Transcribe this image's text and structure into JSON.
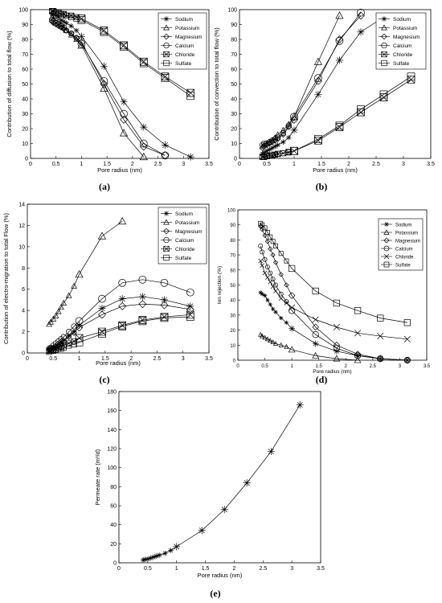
{
  "chart_data": [
    {
      "panel": "(a)",
      "type": "line",
      "xlabel": "Pore radius (nm)",
      "ylabel": "Contribution of diffusion to total flow  (%)",
      "xlim": [
        0,
        3.5
      ],
      "ylim": [
        0,
        100
      ],
      "xticks": [
        "0",
        "0.5",
        "1",
        "1.5",
        "2",
        "2.5",
        "3",
        "3.5"
      ],
      "yticks": [
        "0",
        "10",
        "20",
        "30",
        "40",
        "50",
        "60",
        "70",
        "80",
        "90",
        "100"
      ],
      "legend_position": "top-right",
      "series": [
        {
          "name": "Sodium",
          "marker": "star",
          "x": [
            0.42,
            0.45,
            0.5,
            0.55,
            0.6,
            0.65,
            0.7,
            0.8,
            0.9,
            1.0,
            1.44,
            1.83,
            2.22,
            2.64,
            3.14
          ],
          "y": [
            97,
            97,
            96,
            95,
            93,
            92,
            91,
            89,
            86,
            82,
            62,
            38,
            21,
            9,
            1
          ]
        },
        {
          "name": "Potassium",
          "marker": "triangle",
          "x": [
            0.42,
            0.45,
            0.5,
            0.55,
            0.6,
            0.65,
            0.7,
            0.8,
            0.9,
            1.0,
            1.44,
            1.83,
            2.22
          ],
          "y": [
            95,
            94,
            93,
            92,
            90,
            88,
            86,
            83,
            80,
            76,
            47,
            17,
            1
          ]
        },
        {
          "name": "Magnesium",
          "marker": "diamond",
          "x": [
            0.42,
            0.45,
            0.5,
            0.55,
            0.6,
            0.65,
            0.7,
            0.8,
            0.9,
            1.0,
            1.44,
            1.83,
            2.22,
            2.64
          ],
          "y": [
            92,
            91,
            90,
            89,
            88,
            87,
            86,
            84,
            81,
            78,
            50,
            26,
            8,
            2
          ]
        },
        {
          "name": "Calcium",
          "marker": "circle",
          "x": [
            0.42,
            0.45,
            0.5,
            0.55,
            0.6,
            0.65,
            0.7,
            0.8,
            0.9,
            1.0,
            1.44,
            1.83,
            2.22,
            2.64
          ],
          "y": [
            93,
            92,
            91,
            90,
            89,
            88,
            86,
            84,
            81,
            77,
            52,
            30,
            10,
            2
          ]
        },
        {
          "name": "Chloride",
          "marker": "cross-square",
          "x": [
            0.42,
            0.45,
            0.5,
            0.55,
            0.6,
            0.65,
            0.7,
            0.8,
            0.9,
            1.0,
            1.44,
            1.83,
            2.22,
            2.64,
            3.14
          ],
          "y": [
            99,
            99,
            98,
            98,
            97,
            97,
            96,
            96,
            95,
            94,
            86,
            76,
            65,
            55,
            44
          ]
        },
        {
          "name": "Sulfate",
          "marker": "square",
          "x": [
            0.42,
            0.45,
            0.5,
            0.55,
            0.6,
            0.65,
            0.7,
            0.8,
            0.9,
            1.0,
            1.44,
            1.83,
            2.22,
            2.64,
            3.14
          ],
          "y": [
            99,
            99,
            98,
            98,
            97,
            97,
            96,
            95,
            94,
            93,
            85,
            75,
            64,
            54,
            42
          ]
        }
      ]
    },
    {
      "panel": "(b)",
      "type": "line",
      "xlabel": "Pore radius (nm)",
      "ylabel": "Contribution of convection to total flow  (%)",
      "xlim": [
        0,
        3.5
      ],
      "ylim": [
        0,
        100
      ],
      "xticks": [
        "0",
        "0.5",
        "1",
        "1.5",
        "2",
        "2.5",
        "3",
        "3.5"
      ],
      "yticks": [
        "0",
        "10",
        "20",
        "30",
        "40",
        "50",
        "60",
        "70",
        "80",
        "90",
        "100"
      ],
      "legend_position": "top-right",
      "series": [
        {
          "name": "Sodium",
          "marker": "star",
          "x": [
            0.42,
            0.45,
            0.5,
            0.55,
            0.6,
            0.65,
            0.7,
            0.8,
            0.9,
            1.0,
            1.44,
            1.83,
            2.22,
            2.64
          ],
          "y": [
            3,
            4,
            5,
            6,
            7,
            8,
            9,
            11,
            14,
            19,
            43,
            66,
            85,
            95
          ]
        },
        {
          "name": "Potassium",
          "marker": "triangle",
          "x": [
            0.42,
            0.45,
            0.5,
            0.55,
            0.6,
            0.65,
            0.7,
            0.8,
            0.9,
            1.0,
            1.44,
            1.83
          ],
          "y": [
            8,
            9,
            10,
            11,
            12,
            14,
            16,
            19,
            23,
            28,
            65,
            96
          ]
        },
        {
          "name": "Magnesium",
          "marker": "diamond",
          "x": [
            0.42,
            0.45,
            0.5,
            0.55,
            0.6,
            0.65,
            0.7,
            0.8,
            0.9,
            1.0,
            1.44,
            1.83,
            2.22
          ],
          "y": [
            7,
            8,
            9,
            10,
            11,
            12,
            13,
            16,
            21,
            26,
            52,
            80,
            96
          ]
        },
        {
          "name": "Calcium",
          "marker": "circle",
          "x": [
            0.42,
            0.45,
            0.5,
            0.55,
            0.6,
            0.65,
            0.7,
            0.8,
            0.9,
            1.0,
            1.44,
            1.83,
            2.22
          ],
          "y": [
            9,
            10,
            10,
            11,
            12,
            13,
            14,
            17,
            22,
            28,
            54,
            79,
            98
          ]
        },
        {
          "name": "Chloride",
          "marker": "cross-square",
          "x": [
            0.42,
            0.45,
            0.5,
            0.55,
            0.6,
            0.65,
            0.7,
            0.8,
            0.9,
            1.0,
            1.44,
            1.83,
            2.22,
            2.64,
            3.14
          ],
          "y": [
            1,
            1,
            1.5,
            2,
            2,
            2.5,
            3,
            3.5,
            4,
            5,
            12,
            21,
            31,
            41,
            53
          ]
        },
        {
          "name": "Sulfate",
          "marker": "square",
          "x": [
            0.42,
            0.45,
            0.5,
            0.55,
            0.6,
            0.65,
            0.7,
            0.8,
            0.9,
            1.0,
            1.44,
            1.83,
            2.22,
            2.64,
            3.14
          ],
          "y": [
            1,
            1,
            1.5,
            2,
            2,
            2.5,
            3,
            3.5,
            4.5,
            5,
            13,
            22,
            33,
            43,
            55
          ]
        }
      ]
    },
    {
      "panel": "(c)",
      "type": "line",
      "xlabel": "Pore radius (nm)",
      "ylabel": "Contribution of electro-migration to total Flow (%)",
      "xlim": [
        0,
        3.5
      ],
      "ylim": [
        0,
        14
      ],
      "xticks": [
        "0",
        "0.5",
        "1",
        "1.5",
        "2",
        "2.5",
        "3",
        "3.5"
      ],
      "yticks": [
        "0",
        "2",
        "4",
        "6",
        "8",
        "10",
        "12",
        "14"
      ],
      "legend_position": "top-right",
      "series": [
        {
          "name": "Sodium",
          "marker": "star",
          "x": [
            0.42,
            0.45,
            0.5,
            0.55,
            0.6,
            0.65,
            0.7,
            0.8,
            0.9,
            1.0,
            1.44,
            1.83,
            2.22,
            2.64,
            3.14
          ],
          "y": [
            0.3,
            0.4,
            0.5,
            0.6,
            0.8,
            1.0,
            1.2,
            1.6,
            2.0,
            2.6,
            4.2,
            5.1,
            5.3,
            5.0,
            4.4
          ]
        },
        {
          "name": "Potassium",
          "marker": "triangle",
          "x": [
            0.42,
            0.45,
            0.5,
            0.55,
            0.6,
            0.65,
            0.7,
            0.8,
            0.9,
            1.0,
            1.44,
            1.83
          ],
          "y": [
            2.7,
            2.9,
            3.2,
            3.5,
            3.9,
            4.3,
            4.7,
            5.4,
            6.3,
            7.4,
            11.0,
            12.4
          ]
        },
        {
          "name": "Magnesium",
          "marker": "diamond",
          "x": [
            0.42,
            0.45,
            0.5,
            0.55,
            0.6,
            0.65,
            0.7,
            0.8,
            0.9,
            1.0,
            1.44,
            1.83,
            2.22,
            2.64,
            3.14
          ],
          "y": [
            0.3,
            0.4,
            0.5,
            0.6,
            0.7,
            0.9,
            1.1,
            1.5,
            1.9,
            2.4,
            3.6,
            4.4,
            4.6,
            4.5,
            4.1
          ]
        },
        {
          "name": "Calcium",
          "marker": "circle",
          "x": [
            0.42,
            0.45,
            0.5,
            0.55,
            0.6,
            0.65,
            0.7,
            0.8,
            0.9,
            1.0,
            1.44,
            1.83,
            2.22,
            2.64,
            3.14
          ],
          "y": [
            0.4,
            0.5,
            0.7,
            0.9,
            1.1,
            1.3,
            1.5,
            2.0,
            2.5,
            3.0,
            5.1,
            6.6,
            6.9,
            6.6,
            5.7
          ]
        },
        {
          "name": "Chloride",
          "marker": "cross-square",
          "x": [
            0.42,
            0.45,
            0.5,
            0.55,
            0.6,
            0.65,
            0.7,
            0.8,
            0.9,
            1.0,
            1.44,
            1.83,
            2.22,
            2.64,
            3.14
          ],
          "y": [
            0.2,
            0.3,
            0.3,
            0.4,
            0.5,
            0.6,
            0.7,
            0.9,
            1.1,
            1.4,
            2.0,
            2.6,
            3.1,
            3.4,
            3.6
          ]
        },
        {
          "name": "Sulfate",
          "marker": "square",
          "x": [
            0.42,
            0.45,
            0.5,
            0.55,
            0.6,
            0.65,
            0.7,
            0.8,
            0.9,
            1.0,
            1.44,
            1.83,
            2.22,
            2.64,
            3.14
          ],
          "y": [
            0.1,
            0.2,
            0.2,
            0.3,
            0.4,
            0.4,
            0.5,
            0.7,
            0.8,
            1.0,
            1.8,
            2.5,
            3.0,
            3.3,
            3.4
          ]
        }
      ]
    },
    {
      "panel": "(d)",
      "type": "line",
      "xlabel": "Pore radius (nm)",
      "ylabel": "Ion rejection (%)",
      "xlim": [
        0,
        3.5
      ],
      "ylim": [
        0,
        100
      ],
      "xticks": [
        "0",
        "0.5",
        "1",
        "1.5",
        "2",
        "2.5",
        "3",
        "3.5"
      ],
      "yticks": [
        "0",
        "10",
        "20",
        "30",
        "40",
        "50",
        "60",
        "70",
        "80",
        "90",
        "100"
      ],
      "legend_position": "top-right",
      "series": [
        {
          "name": "Sodium",
          "marker": "star",
          "x": [
            0.42,
            0.45,
            0.5,
            0.55,
            0.6,
            0.65,
            0.7,
            0.8,
            0.9,
            1.0,
            1.44,
            1.83,
            2.22,
            2.64,
            3.14
          ],
          "y": [
            45,
            44,
            43,
            40,
            37,
            34,
            32,
            28,
            25,
            21,
            11,
            6,
            3,
            1,
            0
          ]
        },
        {
          "name": "Potassium",
          "marker": "triangle",
          "x": [
            0.42,
            0.45,
            0.5,
            0.55,
            0.6,
            0.65,
            0.7,
            0.8,
            0.9,
            1.0,
            1.44,
            1.83,
            2.22
          ],
          "y": [
            17,
            16,
            15,
            14,
            13,
            12,
            11,
            10,
            9,
            7,
            3,
            1,
            0
          ]
        },
        {
          "name": "Magnesium",
          "marker": "diamond",
          "x": [
            0.42,
            0.45,
            0.5,
            0.55,
            0.6,
            0.65,
            0.7,
            0.8,
            0.9,
            1.0,
            1.44,
            1.83,
            2.22,
            2.64,
            3.14
          ],
          "y": [
            89,
            87,
            83,
            79,
            74,
            70,
            65,
            57,
            50,
            43,
            22,
            10,
            4,
            1,
            0
          ]
        },
        {
          "name": "Calcium",
          "marker": "circle",
          "x": [
            0.42,
            0.45,
            0.5,
            0.55,
            0.6,
            0.65,
            0.7,
            0.8,
            0.9,
            1.0,
            1.44,
            1.83,
            2.22,
            2.64,
            3.14
          ],
          "y": [
            76,
            72,
            67,
            62,
            58,
            54,
            50,
            44,
            39,
            33,
            17,
            8,
            3,
            1,
            0
          ]
        },
        {
          "name": "Chloride",
          "marker": "x",
          "x": [
            0.42,
            0.45,
            0.5,
            0.55,
            0.6,
            0.65,
            0.7,
            0.8,
            0.9,
            1.0,
            1.44,
            1.83,
            2.22,
            2.64,
            3.14
          ],
          "y": [
            66,
            63,
            58,
            55,
            52,
            49,
            46,
            41,
            38,
            35,
            27,
            22,
            18,
            16,
            14
          ]
        },
        {
          "name": "Sulfate",
          "marker": "square",
          "x": [
            0.42,
            0.45,
            0.5,
            0.55,
            0.6,
            0.65,
            0.7,
            0.8,
            0.9,
            1.0,
            1.44,
            1.83,
            2.22,
            2.64,
            3.14
          ],
          "y": [
            91,
            90,
            88,
            85,
            82,
            79,
            76,
            71,
            66,
            61,
            46,
            38,
            33,
            28,
            25
          ]
        }
      ]
    },
    {
      "panel": "(e)",
      "type": "line",
      "xlabel": "Pore radius (nm)",
      "ylabel": "Permeate rate  (m³/d)",
      "xlim": [
        0,
        3.5
      ],
      "ylim": [
        0,
        180
      ],
      "xticks": [
        "0",
        "0.5",
        "1",
        "1.5",
        "2",
        "2.5",
        "3",
        "3.5"
      ],
      "yticks": [
        "0",
        "20",
        "40",
        "60",
        "80",
        "100",
        "120",
        "140",
        "160",
        "180"
      ],
      "series": [
        {
          "name": "",
          "marker": "star",
          "x": [
            0.42,
            0.45,
            0.5,
            0.55,
            0.6,
            0.65,
            0.7,
            0.8,
            0.9,
            1.0,
            1.44,
            1.83,
            2.22,
            2.64,
            3.14
          ],
          "y": [
            3,
            3.5,
            4,
            5,
            6,
            7,
            8,
            10,
            13,
            17,
            34,
            56,
            84,
            117,
            166
          ]
        }
      ]
    }
  ],
  "legend_labels": [
    "Sodium",
    "Potassium",
    "Magnesium",
    "Calcium",
    "Chloride",
    "Sulfate"
  ]
}
